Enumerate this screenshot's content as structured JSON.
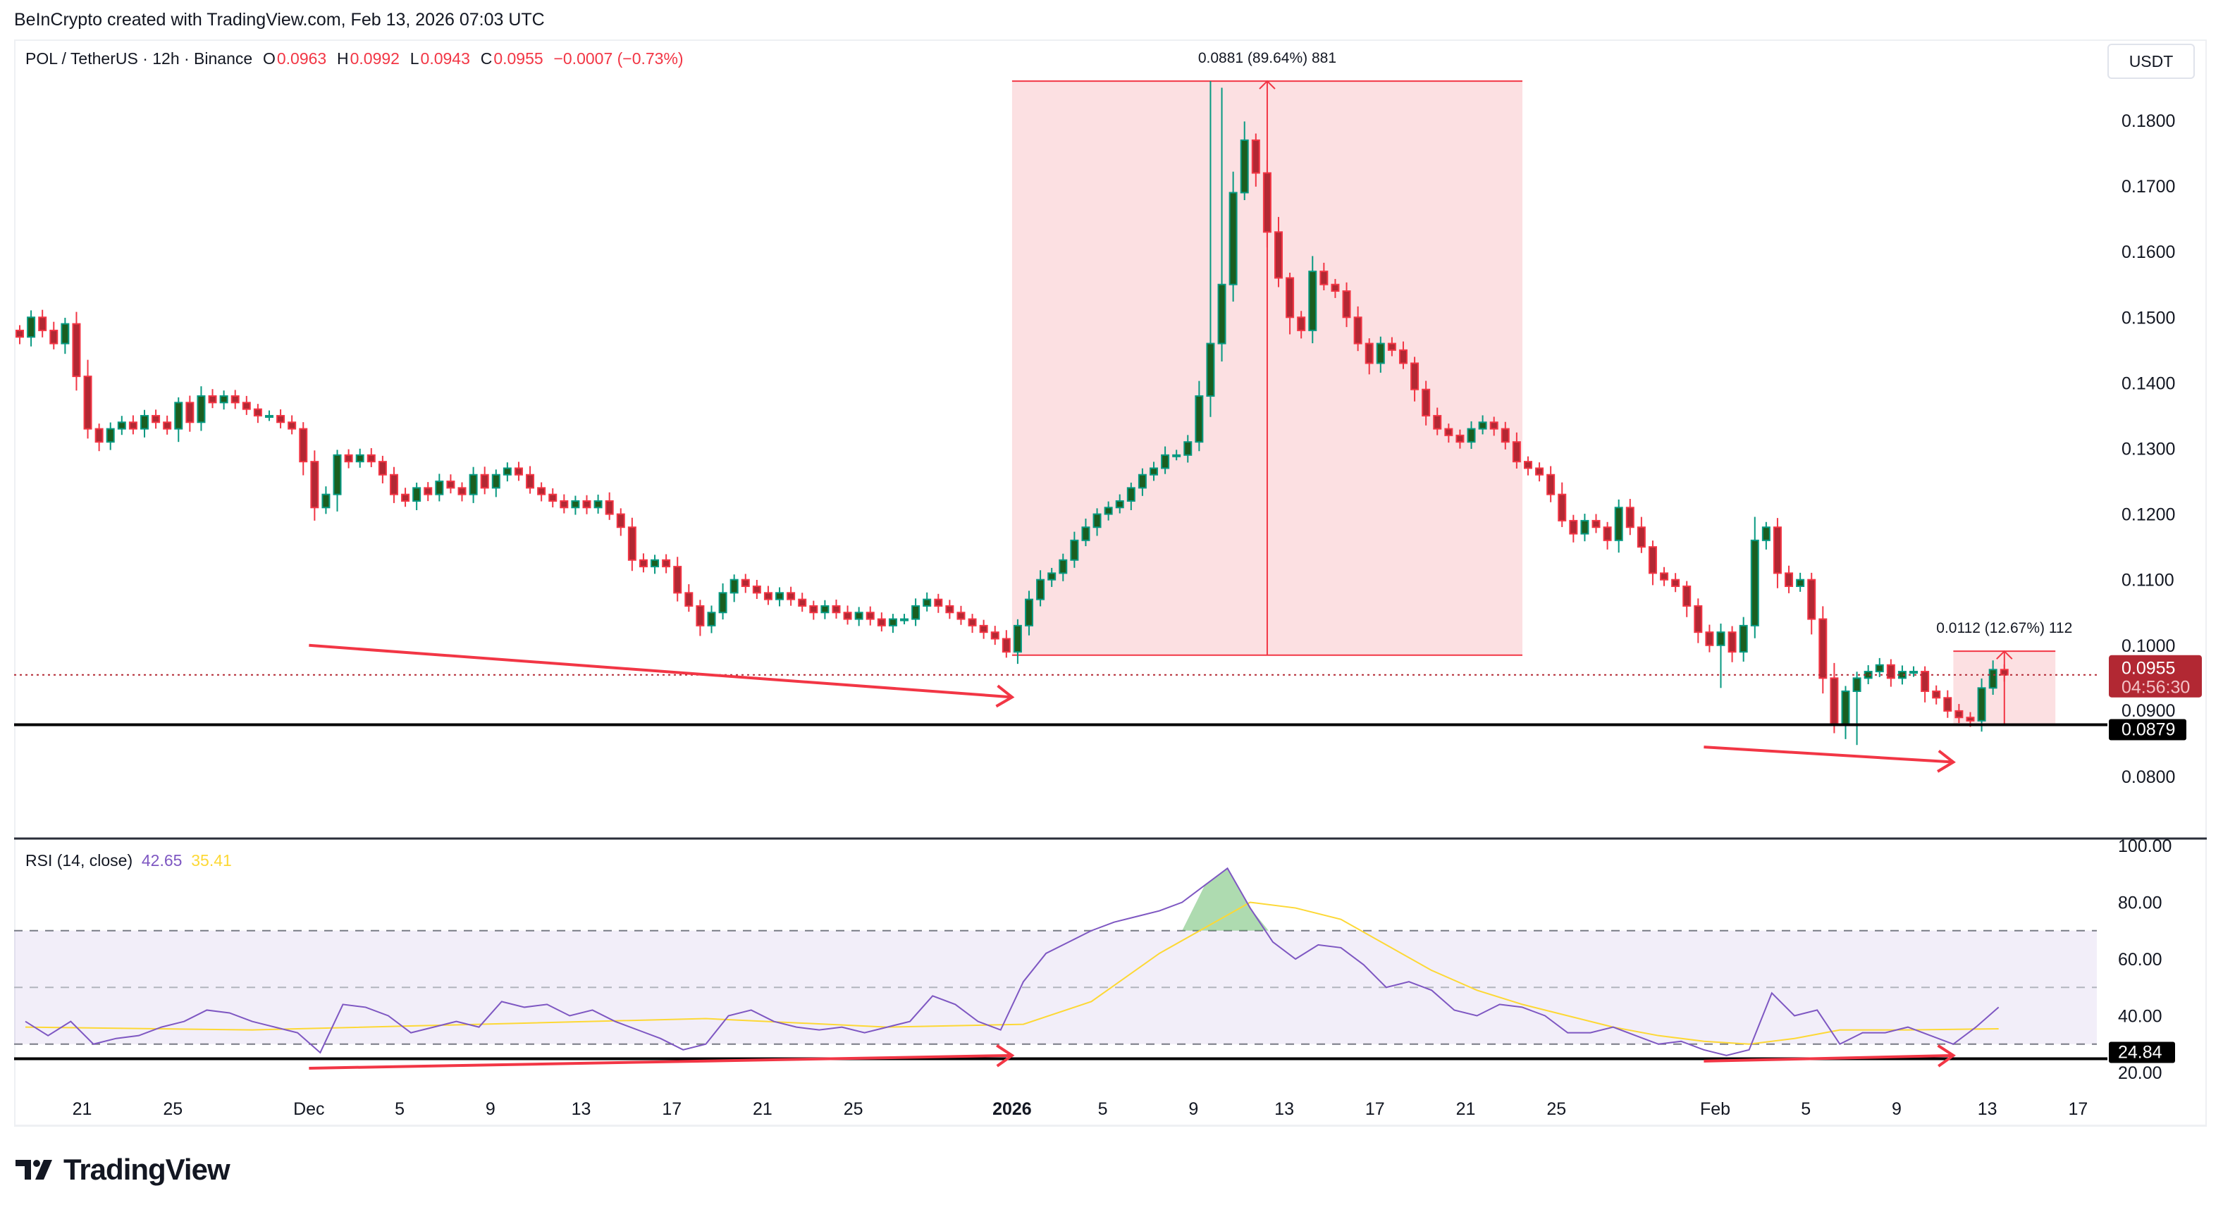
{
  "credit": "BeInCrypto created with TradingView.com, Feb 13, 2026 07:03 UTC",
  "legend": {
    "symbol": "POL / TetherUS · 12h · Binance",
    "o_label": "O",
    "o": "0.0963",
    "h_label": "H",
    "h": "0.0992",
    "l_label": "L",
    "l": "0.0943",
    "c_label": "C",
    "c": "0.0955",
    "change": "−0.0007 (−0.73%)"
  },
  "currency_button": "USDT",
  "rsi_legend": {
    "label": "RSI (14, close)",
    "rsi": "42.65",
    "ma": "35.41"
  },
  "logo_text": "TradingView",
  "colors": {
    "up": "#089981",
    "up_body": "#1b5e20",
    "down": "#f23645",
    "down_body": "#b22833",
    "rsi": "#7e57c2",
    "rsi_ma": "#fdd835",
    "box": "#fce0e2"
  },
  "chart_data": [
    {
      "type": "candlestick",
      "title": "POL / TetherUS · 12h · Binance",
      "interval": "12h",
      "start": "Nov 18",
      "ylim": [
        0.078,
        0.188
      ],
      "y_ticks": [
        "0.1800",
        "0.1700",
        "0.1600",
        "0.1500",
        "0.1400",
        "0.1300",
        "0.1200",
        "0.1100",
        "0.1000",
        "0.0900",
        "0.0800"
      ],
      "x_ticks": [
        {
          "day": 3,
          "label": "21"
        },
        {
          "day": 7,
          "label": "25"
        },
        {
          "day": 13,
          "label": "Dec"
        },
        {
          "day": 17,
          "label": "5"
        },
        {
          "day": 21,
          "label": "9"
        },
        {
          "day": 25,
          "label": "13"
        },
        {
          "day": 29,
          "label": "17"
        },
        {
          "day": 33,
          "label": "21"
        },
        {
          "day": 37,
          "label": "25"
        },
        {
          "day": 44,
          "label": "2026",
          "bold": true
        },
        {
          "day": 48,
          "label": "5"
        },
        {
          "day": 52,
          "label": "9"
        },
        {
          "day": 56,
          "label": "13"
        },
        {
          "day": 60,
          "label": "17"
        },
        {
          "day": 64,
          "label": "21"
        },
        {
          "day": 68,
          "label": "25"
        },
        {
          "day": 75,
          "label": "Feb"
        },
        {
          "day": 79,
          "label": "5"
        },
        {
          "day": 83,
          "label": "9"
        },
        {
          "day": 87,
          "label": "13"
        },
        {
          "day": 91,
          "label": "17"
        }
      ],
      "first_open": 0.148,
      "closes": [
        0.147,
        0.15,
        0.148,
        0.146,
        0.149,
        0.141,
        0.133,
        0.131,
        0.133,
        0.134,
        0.133,
        0.135,
        0.134,
        0.133,
        0.137,
        0.134,
        0.138,
        0.137,
        0.138,
        0.137,
        0.136,
        0.135,
        0.135,
        0.134,
        0.133,
        0.128,
        0.121,
        0.123,
        0.129,
        0.128,
        0.129,
        0.128,
        0.126,
        0.123,
        0.122,
        0.124,
        0.123,
        0.125,
        0.124,
        0.123,
        0.126,
        0.124,
        0.126,
        0.127,
        0.126,
        0.124,
        0.123,
        0.122,
        0.121,
        0.122,
        0.121,
        0.122,
        0.12,
        0.118,
        0.113,
        0.112,
        0.113,
        0.112,
        0.108,
        0.106,
        0.103,
        0.105,
        0.108,
        0.11,
        0.109,
        0.108,
        0.107,
        0.108,
        0.107,
        0.106,
        0.105,
        0.106,
        0.105,
        0.104,
        0.105,
        0.104,
        0.103,
        0.104,
        0.104,
        0.106,
        0.107,
        0.106,
        0.105,
        0.104,
        0.103,
        0.102,
        0.101,
        0.099,
        0.103,
        0.107,
        0.11,
        0.111,
        0.113,
        0.116,
        0.118,
        0.12,
        0.121,
        0.122,
        0.124,
        0.126,
        0.127,
        0.129,
        0.129,
        0.131,
        0.138,
        0.146,
        0.155,
        0.169,
        0.177,
        0.172,
        0.163,
        0.156,
        0.15,
        0.148,
        0.157,
        0.155,
        0.154,
        0.15,
        0.146,
        0.143,
        0.146,
        0.145,
        0.143,
        0.139,
        0.135,
        0.133,
        0.132,
        0.131,
        0.133,
        0.134,
        0.133,
        0.131,
        0.128,
        0.127,
        0.126,
        0.123,
        0.119,
        0.117,
        0.119,
        0.118,
        0.116,
        0.121,
        0.118,
        0.115,
        0.111,
        0.11,
        0.109,
        0.106,
        0.102,
        0.1,
        0.102,
        0.099,
        0.103,
        0.116,
        0.118,
        0.111,
        0.109,
        0.11,
        0.104,
        0.095,
        0.088,
        0.093,
        0.095,
        0.096,
        0.097,
        0.095,
        0.096,
        0.096,
        0.093,
        0.092,
        0.09,
        0.089,
        0.0885,
        0.0935,
        0.0963,
        0.0955
      ],
      "price_line": {
        "value": 0.0955,
        "label": "0.0955",
        "countdown": "04:56:30"
      },
      "horizontal_line": {
        "value": 0.0879,
        "label": "0.0879"
      },
      "hidden_tick": "0.0900",
      "measures": [
        {
          "from_day": 44,
          "to_day": 66.5,
          "low": 0.0985,
          "high": 0.186,
          "label": "0.0881 (89.64%) 881"
        },
        {
          "from_day": 85.5,
          "to_day": 90,
          "low": 0.0879,
          "high": 0.0991,
          "label": "0.0112 (12.67%) 112"
        }
      ],
      "trend_arrows": [
        {
          "from": [
            13,
            0.1
          ],
          "to": [
            44,
            0.0921
          ]
        },
        {
          "from": [
            74.5,
            0.0845
          ],
          "to": [
            85.5,
            0.0822
          ]
        }
      ]
    },
    {
      "type": "line",
      "title": "RSI (14, close)",
      "ylim": [
        17,
        100
      ],
      "y_ticks": [
        "100.00",
        "80.00",
        "60.00",
        "40.00",
        "20.00"
      ],
      "bands": {
        "upper": 70,
        "middle": 50,
        "lower": 30
      },
      "rsi_by_day": [
        38,
        33,
        38,
        30,
        32,
        33,
        36,
        38,
        42,
        41,
        38,
        36,
        34,
        27,
        44,
        43,
        40,
        34,
        36,
        38,
        36,
        45,
        43,
        44,
        40,
        42,
        38,
        35,
        32,
        28,
        30,
        40,
        42,
        38,
        36,
        35,
        36,
        34,
        36,
        38,
        47,
        44,
        38,
        35,
        52,
        62,
        66,
        70,
        73,
        75,
        77,
        80,
        86,
        92,
        78,
        66,
        60,
        65,
        64,
        58,
        50,
        52,
        49,
        42,
        40,
        44,
        43,
        40,
        34,
        34,
        36,
        33,
        30,
        31,
        28,
        26,
        28,
        48,
        40,
        42,
        30,
        34,
        34,
        36,
        33,
        30,
        36,
        43
      ],
      "ma_points": [
        [
          0,
          36
        ],
        [
          10,
          35
        ],
        [
          20,
          37
        ],
        [
          30,
          39
        ],
        [
          38,
          36
        ],
        [
          44,
          37
        ],
        [
          47,
          45
        ],
        [
          50,
          62
        ],
        [
          54,
          80
        ],
        [
          56,
          78
        ],
        [
          58,
          74
        ],
        [
          60,
          65
        ],
        [
          62,
          56
        ],
        [
          64,
          49
        ],
        [
          66,
          44
        ],
        [
          68,
          40
        ],
        [
          70,
          36
        ],
        [
          72,
          33
        ],
        [
          74,
          31
        ],
        [
          76,
          30
        ],
        [
          78,
          32
        ],
        [
          80,
          35
        ],
        [
          83,
          35
        ],
        [
          87,
          35.4
        ]
      ],
      "horizontal_line": {
        "value": 24.84,
        "label": "24.84"
      },
      "trend_arrows": [
        {
          "from": [
            13,
            21.5
          ],
          "to": [
            44,
            26
          ]
        },
        {
          "from": [
            74.5,
            24
          ],
          "to": [
            85.5,
            26
          ]
        }
      ]
    }
  ]
}
